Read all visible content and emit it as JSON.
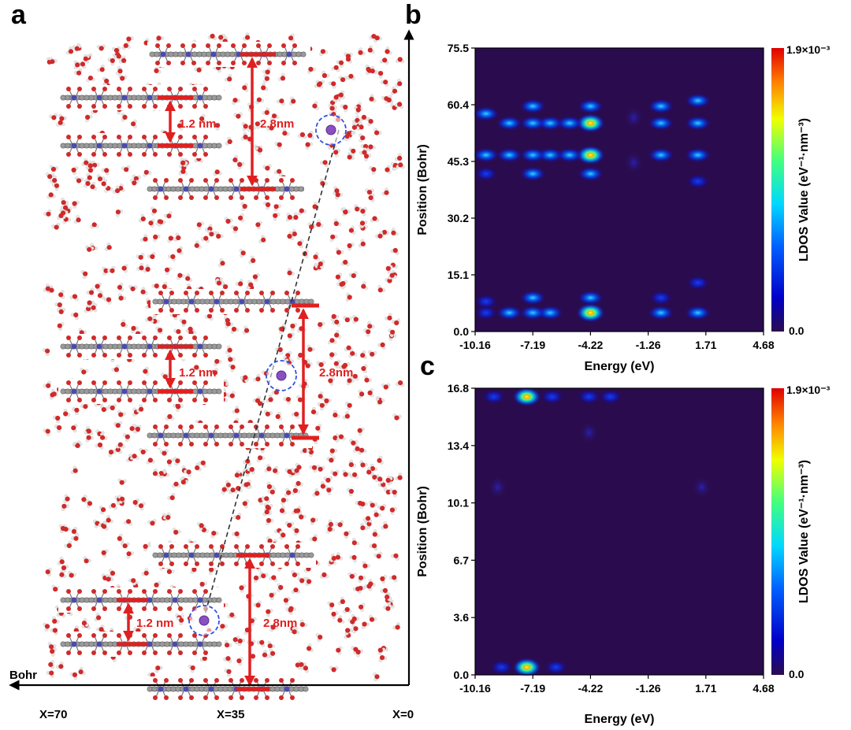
{
  "panel_a": {
    "label": "a",
    "axis_label": "Bohr",
    "x_ticks": [
      "X=70",
      "X=35",
      "X=0"
    ],
    "spacings": [
      {
        "name": "top-inner",
        "text": "1.2 nm"
      },
      {
        "name": "top-outer",
        "text": "2.8nm"
      },
      {
        "name": "mid-inner",
        "text": "1.2 nm"
      },
      {
        "name": "mid-outer",
        "text": "2.8nm"
      },
      {
        "name": "bottom-inner",
        "text": "1.2 nm"
      },
      {
        "name": "bottom-outer",
        "text": "2.8nm"
      }
    ],
    "colors": {
      "arrow": "#e02020",
      "ion": "#8a4fc0",
      "ring": "#3050e0",
      "oxygen": "#d02a2a",
      "hydrogen": "#e6e6e6",
      "carbon": "#8a8a8a",
      "nitrogen": "#4a4ab0"
    }
  },
  "chart_data": [
    {
      "panel": "b",
      "type": "heatmap",
      "xlabel": "Energy (eV)",
      "ylabel": "Position (Bohr)",
      "x_ticks": [
        "-10.16",
        "-7.19",
        "-4.22",
        "-1.26",
        "1.71",
        "4.68"
      ],
      "y_ticks": [
        "0.0",
        "15.1",
        "30.2",
        "45.3",
        "60.4",
        "75.5"
      ],
      "xlim": [
        -10.16,
        4.68
      ],
      "ylim": [
        0.0,
        75.5
      ],
      "colorbar": {
        "label": "LDOS Value (eV⁻¹·nm⁻³)",
        "max": "1.9×10⁻³",
        "min": "0.0"
      },
      "hotspots": [
        {
          "energy": -4.22,
          "position": 55.5,
          "intensity": 0.95
        },
        {
          "energy": -4.22,
          "position": 47.0,
          "intensity": 0.9
        },
        {
          "energy": -4.22,
          "position": 5.0,
          "intensity": 0.85
        },
        {
          "energy": -4.22,
          "position": 60.0,
          "intensity": 0.35
        },
        {
          "energy": -4.22,
          "position": 42.0,
          "intensity": 0.3
        },
        {
          "energy": -4.22,
          "position": 9.0,
          "intensity": 0.3
        },
        {
          "energy": -5.3,
          "position": 55.5,
          "intensity": 0.35
        },
        {
          "energy": -5.3,
          "position": 47.0,
          "intensity": 0.35
        },
        {
          "energy": -6.3,
          "position": 55.5,
          "intensity": 0.4
        },
        {
          "energy": -6.3,
          "position": 47.0,
          "intensity": 0.4
        },
        {
          "energy": -6.3,
          "position": 5.0,
          "intensity": 0.35
        },
        {
          "energy": -7.19,
          "position": 60.0,
          "intensity": 0.35
        },
        {
          "energy": -7.19,
          "position": 55.5,
          "intensity": 0.4
        },
        {
          "energy": -7.19,
          "position": 47.0,
          "intensity": 0.4
        },
        {
          "energy": -7.19,
          "position": 42.0,
          "intensity": 0.35
        },
        {
          "energy": -7.19,
          "position": 9.0,
          "intensity": 0.3
        },
        {
          "energy": -7.19,
          "position": 5.0,
          "intensity": 0.35
        },
        {
          "energy": -8.4,
          "position": 55.5,
          "intensity": 0.35
        },
        {
          "energy": -8.4,
          "position": 47.0,
          "intensity": 0.35
        },
        {
          "energy": -8.4,
          "position": 5.0,
          "intensity": 0.3
        },
        {
          "energy": -9.6,
          "position": 58.0,
          "intensity": 0.3
        },
        {
          "energy": -9.6,
          "position": 47.0,
          "intensity": 0.3
        },
        {
          "energy": -9.6,
          "position": 42.0,
          "intensity": 0.25
        },
        {
          "energy": -9.6,
          "position": 8.0,
          "intensity": 0.25
        },
        {
          "energy": -9.6,
          "position": 5.0,
          "intensity": 0.25
        },
        {
          "energy": -0.6,
          "position": 60.0,
          "intensity": 0.3
        },
        {
          "energy": -0.6,
          "position": 55.5,
          "intensity": 0.35
        },
        {
          "energy": -0.6,
          "position": 47.0,
          "intensity": 0.35
        },
        {
          "energy": -0.6,
          "position": 5.0,
          "intensity": 0.35
        },
        {
          "energy": -0.6,
          "position": 9.0,
          "intensity": 0.25
        },
        {
          "energy": 1.3,
          "position": 61.5,
          "intensity": 0.3
        },
        {
          "energy": 1.3,
          "position": 55.5,
          "intensity": 0.35
        },
        {
          "energy": 1.3,
          "position": 47.0,
          "intensity": 0.35
        },
        {
          "energy": 1.3,
          "position": 40.0,
          "intensity": 0.2
        },
        {
          "energy": 1.3,
          "position": 13.0,
          "intensity": 0.2
        },
        {
          "energy": 1.3,
          "position": 5.0,
          "intensity": 0.3
        },
        {
          "energy": -2.0,
          "position": 57.0,
          "intensity": 0.1
        },
        {
          "energy": -2.0,
          "position": 45.0,
          "intensity": 0.1
        }
      ]
    },
    {
      "panel": "c",
      "type": "heatmap",
      "xlabel": "Energy (eV)",
      "ylabel": "Position (Bohr)",
      "x_ticks": [
        "-10.16",
        "-7.19",
        "-4.22",
        "-1.26",
        "1.71",
        "4.68"
      ],
      "y_ticks": [
        "0.0",
        "3.6",
        "6.7",
        "10.1",
        "13.4",
        "16.8"
      ],
      "xlim": [
        -10.16,
        4.68
      ],
      "ylim": [
        0.0,
        16.8
      ],
      "colorbar": {
        "label": "LDOS Value (eV⁻¹·nm⁻³)",
        "max": "1.9×10⁻³",
        "min": "0.0"
      },
      "hotspots": [
        {
          "energy": -7.5,
          "position": 16.3,
          "intensity": 0.95
        },
        {
          "energy": -7.5,
          "position": 0.45,
          "intensity": 0.95
        },
        {
          "energy": -9.2,
          "position": 16.3,
          "intensity": 0.25
        },
        {
          "energy": -6.2,
          "position": 16.3,
          "intensity": 0.25
        },
        {
          "energy": -4.3,
          "position": 16.3,
          "intensity": 0.25
        },
        {
          "energy": -3.2,
          "position": 16.3,
          "intensity": 0.15
        },
        {
          "energy": -6.0,
          "position": 0.45,
          "intensity": 0.2
        },
        {
          "energy": -8.8,
          "position": 0.45,
          "intensity": 0.2
        },
        {
          "energy": -9.0,
          "position": 11.0,
          "intensity": 0.12
        },
        {
          "energy": 1.5,
          "position": 11.0,
          "intensity": 0.12
        },
        {
          "energy": -4.3,
          "position": 14.2,
          "intensity": 0.08
        }
      ]
    }
  ]
}
